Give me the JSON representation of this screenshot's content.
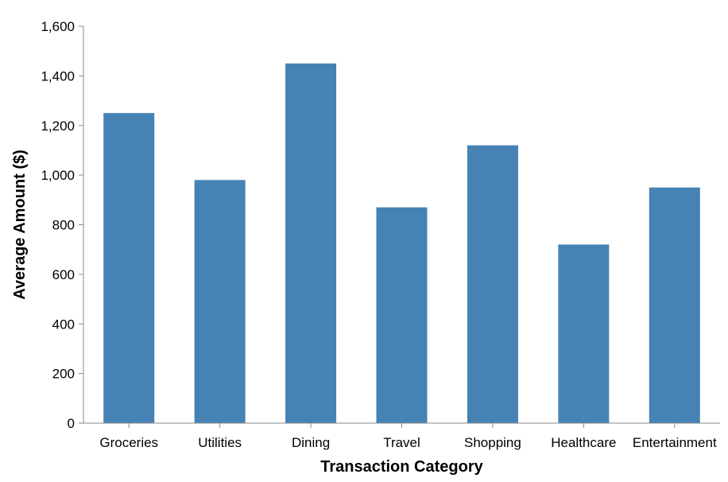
{
  "chart_data": {
    "type": "bar",
    "categories": [
      "Groceries",
      "Utilities",
      "Dining",
      "Travel",
      "Shopping",
      "Healthcare",
      "Entertainment"
    ],
    "values": [
      1250,
      980,
      1450,
      870,
      1120,
      720,
      950
    ],
    "xlabel": "Transaction Category",
    "ylabel": "Average Amount ($)",
    "ylim": [
      0,
      1600
    ],
    "yticks": [
      0,
      200,
      400,
      600,
      800,
      1000,
      1200,
      1400,
      1600
    ],
    "ytick_labels": [
      "0",
      "200",
      "400",
      "600",
      "800",
      "1,000",
      "1,200",
      "1,400",
      "1,600"
    ],
    "grid": false,
    "bar_color": "#4682b4",
    "axis_color": "#888888"
  }
}
